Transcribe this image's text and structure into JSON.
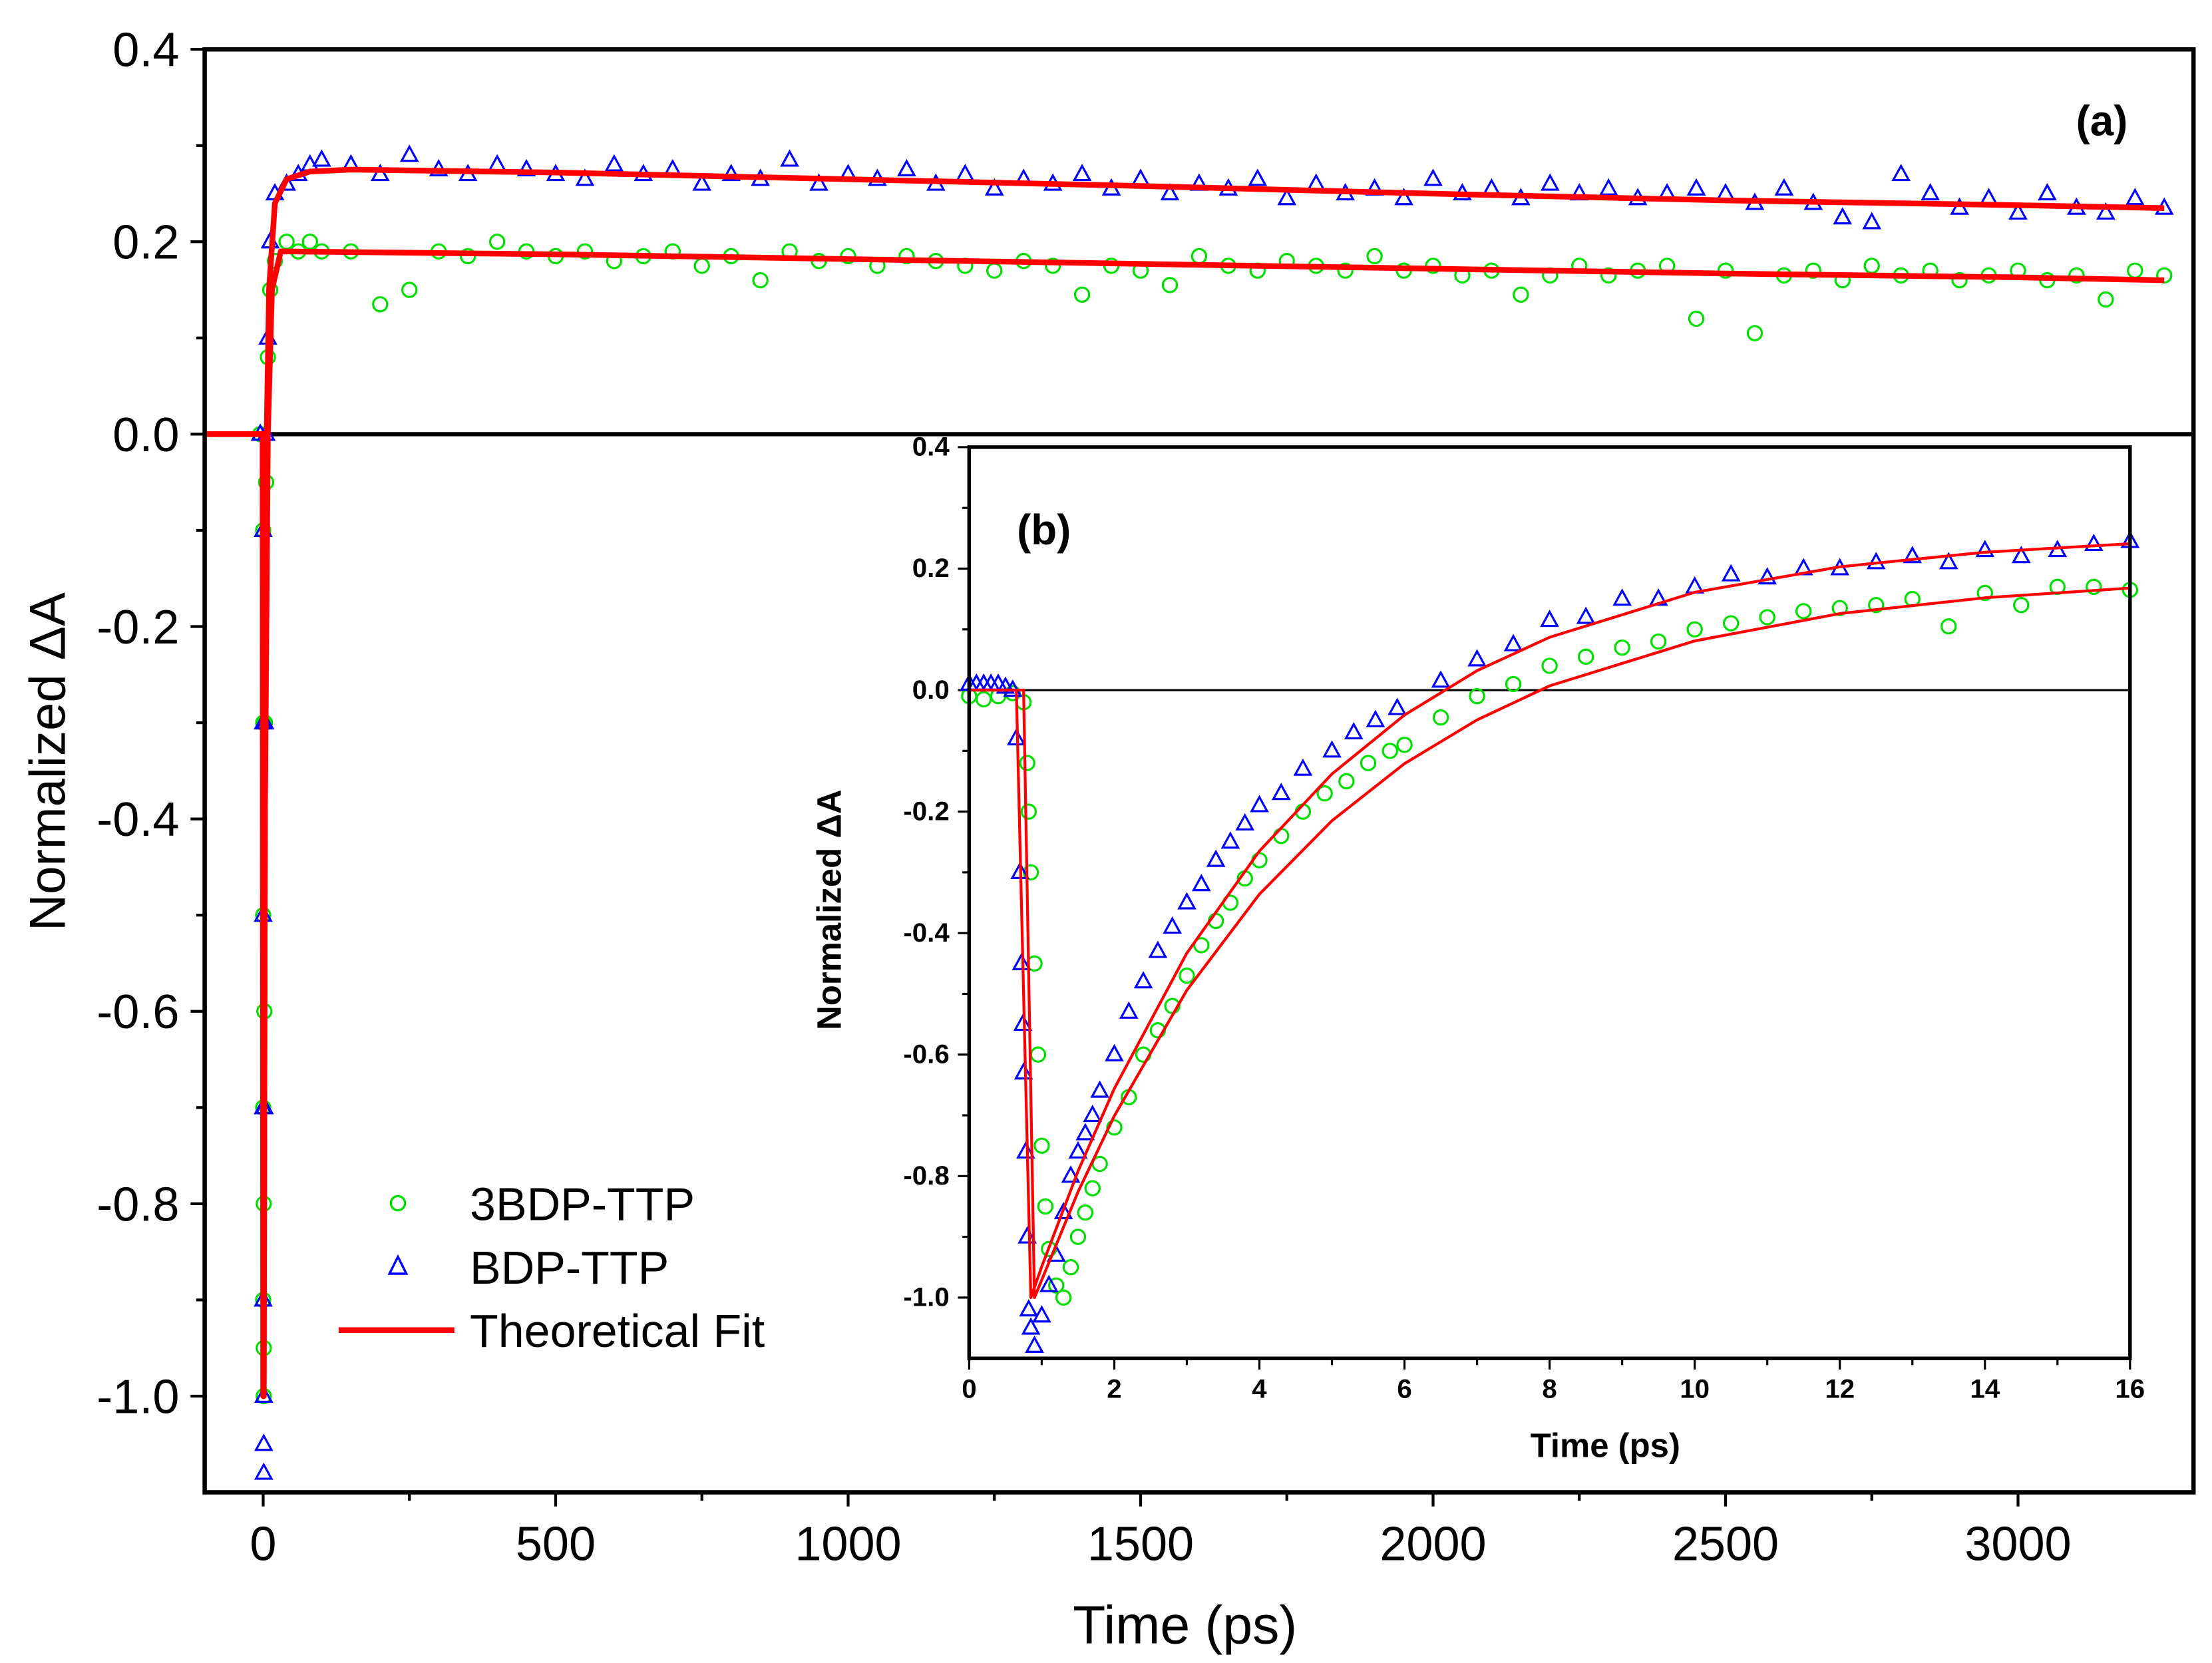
{
  "chart_data": [
    {
      "type": "scatter",
      "panel_label": "(a)",
      "xlabel": "Time (ps)",
      "ylabel": "Normalized ΔA",
      "xlim": [
        -100,
        3300
      ],
      "ylim": [
        -1.1,
        0.4
      ],
      "x_ticks": [
        0,
        500,
        1000,
        1500,
        2000,
        2500,
        3000
      ],
      "x_tick_labels": [
        "0",
        "500",
        "1000",
        "1500",
        "2000",
        "2500",
        "3000"
      ],
      "y_ticks": [
        -1.0,
        -0.8,
        -0.6,
        -0.4,
        -0.2,
        0.0,
        0.2,
        0.4
      ],
      "y_tick_labels": [
        "-1.0",
        "-0.8",
        "-0.6",
        "-0.4",
        "-0.2",
        "0.0",
        "0.2",
        "0.4"
      ],
      "zero_line": true,
      "grid": false,
      "legend": {
        "placement": "bottom-left",
        "entries": [
          "3BDP-TTP",
          "BDP-TTP",
          "Theoretical Fit"
        ]
      },
      "series": [
        {
          "name": "3BDP-TTP",
          "marker": "circle",
          "color": "#00e000",
          "x": [
            -5,
            0,
            0,
            0,
            0,
            0,
            1,
            1,
            1,
            2,
            3,
            5,
            8,
            12,
            20,
            40,
            60,
            80,
            100,
            150,
            200,
            250,
            300,
            350,
            400,
            450,
            500,
            550,
            600,
            650,
            700,
            750,
            800,
            850,
            900,
            950,
            1000,
            1050,
            1100,
            1150,
            1200,
            1250,
            1300,
            1350,
            1400,
            1450,
            1500,
            1550,
            1600,
            1650,
            1700,
            1750,
            1800,
            1850,
            1900,
            1950,
            2000,
            2050,
            2100,
            2150,
            2200,
            2250,
            2300,
            2350,
            2400,
            2450,
            2500,
            2550,
            2600,
            2650,
            2700,
            2750,
            2800,
            2850,
            2900,
            2950,
            3000,
            3050,
            3100,
            3150,
            3200,
            3250
          ],
          "y": [
            0,
            -0.1,
            -0.3,
            -0.5,
            -0.7,
            -0.9,
            -1.0,
            -0.95,
            -0.8,
            -0.6,
            -0.3,
            -0.05,
            0.08,
            0.15,
            0.18,
            0.2,
            0.19,
            0.2,
            0.19,
            0.19,
            0.135,
            0.15,
            0.19,
            0.185,
            0.2,
            0.19,
            0.185,
            0.19,
            0.18,
            0.185,
            0.19,
            0.175,
            0.185,
            0.16,
            0.19,
            0.18,
            0.185,
            0.175,
            0.185,
            0.18,
            0.175,
            0.17,
            0.18,
            0.175,
            0.145,
            0.175,
            0.17,
            0.155,
            0.185,
            0.175,
            0.17,
            0.18,
            0.175,
            0.17,
            0.185,
            0.17,
            0.175,
            0.165,
            0.17,
            0.145,
            0.165,
            0.175,
            0.165,
            0.17,
            0.175,
            0.12,
            0.17,
            0.105,
            0.165,
            0.17,
            0.16,
            0.175,
            0.165,
            0.17,
            0.16,
            0.165,
            0.17,
            0.16,
            0.165,
            0.14,
            0.17,
            0.165
          ]
        },
        {
          "name": "BDP-TTP",
          "marker": "triangle",
          "color": "#0000ff",
          "x": [
            -5,
            0,
            0,
            0,
            0,
            0,
            1,
            1,
            1,
            2,
            3,
            5,
            8,
            12,
            20,
            40,
            60,
            80,
            100,
            150,
            200,
            250,
            300,
            350,
            400,
            450,
            500,
            550,
            600,
            650,
            700,
            750,
            800,
            850,
            900,
            950,
            1000,
            1050,
            1100,
            1150,
            1200,
            1250,
            1300,
            1350,
            1400,
            1450,
            1500,
            1550,
            1600,
            1650,
            1700,
            1750,
            1800,
            1850,
            1900,
            1950,
            2000,
            2050,
            2100,
            2150,
            2200,
            2250,
            2300,
            2350,
            2400,
            2450,
            2500,
            2550,
            2600,
            2650,
            2700,
            2750,
            2800,
            2850,
            2900,
            2950,
            3000,
            3050,
            3100,
            3150,
            3200,
            3250
          ],
          "y": [
            0,
            -0.1,
            -0.3,
            -0.5,
            -0.7,
            -0.9,
            -1.0,
            -1.05,
            -1.08,
            -0.7,
            -0.3,
            0.0,
            0.1,
            0.2,
            0.25,
            0.26,
            0.27,
            0.28,
            0.285,
            0.28,
            0.27,
            0.29,
            0.275,
            0.27,
            0.28,
            0.275,
            0.27,
            0.265,
            0.28,
            0.27,
            0.275,
            0.26,
            0.27,
            0.265,
            0.285,
            0.26,
            0.27,
            0.265,
            0.275,
            0.26,
            0.27,
            0.255,
            0.265,
            0.26,
            0.27,
            0.255,
            0.265,
            0.25,
            0.26,
            0.255,
            0.265,
            0.245,
            0.26,
            0.25,
            0.255,
            0.245,
            0.265,
            0.25,
            0.255,
            0.245,
            0.26,
            0.25,
            0.255,
            0.245,
            0.25,
            0.255,
            0.25,
            0.24,
            0.255,
            0.24,
            0.225,
            0.22,
            0.27,
            0.25,
            0.235,
            0.245,
            0.23,
            0.25,
            0.235,
            0.23,
            0.245,
            0.235
          ]
        },
        {
          "name": "Theoretical Fit",
          "marker": "line",
          "color": "#ff0000",
          "curves": [
            [
              [
                -100,
                0
              ],
              [
                -1,
                0
              ],
              [
                0,
                -1.0
              ],
              [
                1,
                -1.0
              ],
              [
                3,
                -0.4
              ],
              [
                6,
                0.0
              ],
              [
                10,
                0.15
              ],
              [
                20,
                0.24
              ],
              [
                40,
                0.265
              ],
              [
                80,
                0.273
              ],
              [
                150,
                0.275
              ],
              [
                500,
                0.272
              ],
              [
                1000,
                0.265
              ],
              [
                1500,
                0.258
              ],
              [
                2000,
                0.25
              ],
              [
                2500,
                0.243
              ],
              [
                3000,
                0.238
              ],
              [
                3250,
                0.235
              ]
            ],
            [
              [
                -100,
                0
              ],
              [
                0,
                0
              ],
              [
                1,
                -1.0
              ],
              [
                3,
                -0.4
              ],
              [
                8,
                0.0
              ],
              [
                15,
                0.15
              ],
              [
                30,
                0.19
              ],
              [
                500,
                0.187
              ],
              [
                1000,
                0.182
              ],
              [
                1500,
                0.177
              ],
              [
                2000,
                0.172
              ],
              [
                2500,
                0.167
              ],
              [
                3000,
                0.163
              ],
              [
                3250,
                0.16
              ]
            ]
          ]
        }
      ]
    },
    {
      "type": "scatter",
      "panel_label": "(b)",
      "xlabel": "Time (ps)",
      "ylabel": "Normalized ΔA",
      "xlim": [
        0,
        16
      ],
      "ylim": [
        -1.1,
        0.4
      ],
      "x_ticks": [
        0,
        2,
        4,
        6,
        8,
        10,
        12,
        14,
        16
      ],
      "x_tick_labels": [
        "0",
        "2",
        "4",
        "6",
        "8",
        "10",
        "12",
        "14",
        "16"
      ],
      "y_ticks": [
        -1.0,
        -0.8,
        -0.6,
        -0.4,
        -0.2,
        0.0,
        0.2,
        0.4
      ],
      "y_tick_labels": [
        "-1.0",
        "-0.8",
        "-0.6",
        "-0.4",
        "-0.2",
        "0.0",
        "0.2",
        "0.4"
      ],
      "zero_line": true,
      "grid": false,
      "series": [
        {
          "name": "3BDP-TTP",
          "marker": "circle",
          "color": "#00e000",
          "x": [
            0,
            0.2,
            0.4,
            0.6,
            0.75,
            0.8,
            0.82,
            0.85,
            0.9,
            0.95,
            1.0,
            1.05,
            1.1,
            1.2,
            1.3,
            1.4,
            1.5,
            1.6,
            1.7,
            1.8,
            2.0,
            2.2,
            2.4,
            2.6,
            2.8,
            3.0,
            3.2,
            3.4,
            3.6,
            3.8,
            4.0,
            4.3,
            4.6,
            4.9,
            5.2,
            5.5,
            5.8,
            6.0,
            6.5,
            7.0,
            7.5,
            8.0,
            8.5,
            9.0,
            9.5,
            10,
            10.5,
            11,
            11.5,
            12,
            12.5,
            13,
            13.5,
            14,
            14.5,
            15,
            15.5,
            16
          ],
          "y": [
            -0.01,
            -0.015,
            -0.01,
            -0.005,
            -0.02,
            -0.12,
            -0.2,
            -0.3,
            -0.45,
            -0.6,
            -0.75,
            -0.85,
            -0.92,
            -0.98,
            -1.0,
            -0.95,
            -0.9,
            -0.86,
            -0.82,
            -0.78,
            -0.72,
            -0.67,
            -0.6,
            -0.56,
            -0.52,
            -0.47,
            -0.42,
            -0.38,
            -0.35,
            -0.31,
            -0.28,
            -0.24,
            -0.2,
            -0.17,
            -0.15,
            -0.12,
            -0.1,
            -0.09,
            -0.045,
            -0.01,
            0.01,
            0.04,
            0.055,
            0.07,
            0.08,
            0.1,
            0.11,
            0.12,
            0.13,
            0.135,
            0.14,
            0.15,
            0.105,
            0.16,
            0.14,
            0.17,
            0.17,
            0.165
          ]
        },
        {
          "name": "BDP-TTP",
          "marker": "triangle",
          "color": "#0000ff",
          "x": [
            0,
            0.1,
            0.2,
            0.3,
            0.4,
            0.5,
            0.6,
            0.65,
            0.7,
            0.72,
            0.74,
            0.75,
            0.78,
            0.8,
            0.82,
            0.85,
            0.9,
            1.0,
            1.1,
            1.2,
            1.3,
            1.4,
            1.5,
            1.6,
            1.7,
            1.8,
            2.0,
            2.2,
            2.4,
            2.6,
            2.8,
            3.0,
            3.2,
            3.4,
            3.6,
            3.8,
            4.0,
            4.3,
            4.6,
            5.0,
            5.3,
            5.6,
            5.9,
            6.5,
            7.0,
            7.5,
            8.0,
            8.5,
            9.0,
            9.5,
            10,
            10.5,
            11,
            11.5,
            12,
            12.5,
            13,
            13.5,
            14,
            14.5,
            15,
            15.5,
            16
          ],
          "y": [
            0.01,
            0.01,
            0.01,
            0.01,
            0.01,
            0.005,
            0.0,
            -0.08,
            -0.3,
            -0.45,
            -0.55,
            -0.63,
            -0.76,
            -0.9,
            -1.02,
            -1.05,
            -1.08,
            -1.03,
            -0.98,
            -0.93,
            -0.86,
            -0.8,
            -0.76,
            -0.73,
            -0.7,
            -0.66,
            -0.6,
            -0.53,
            -0.48,
            -0.43,
            -0.39,
            -0.35,
            -0.32,
            -0.28,
            -0.25,
            -0.22,
            -0.19,
            -0.17,
            -0.13,
            -0.1,
            -0.07,
            -0.05,
            -0.03,
            0.015,
            0.05,
            0.075,
            0.115,
            0.12,
            0.15,
            0.15,
            0.17,
            0.19,
            0.185,
            0.2,
            0.2,
            0.21,
            0.22,
            0.21,
            0.23,
            0.22,
            0.23,
            0.24,
            0.245
          ]
        },
        {
          "name": "Theoretical Fit",
          "marker": "line",
          "color": "#ff0000",
          "curves": [
            [
              [
                0,
                0
              ],
              [
                0.65,
                0
              ],
              [
                0.85,
                -1.0
              ],
              [
                1,
                -0.949
              ],
              [
                1.5,
                -0.792
              ],
              [
                2,
                -0.656
              ],
              [
                3,
                -0.433
              ],
              [
                4,
                -0.265
              ],
              [
                5,
                -0.138
              ],
              [
                6,
                -0.041
              ],
              [
                7,
                0.032
              ],
              [
                8,
                0.087
              ],
              [
                10,
                0.161
              ],
              [
                12,
                0.203
              ],
              [
                14,
                0.227
              ],
              [
                16,
                0.241
              ]
            ],
            [
              [
                0,
                0
              ],
              [
                0.75,
                0
              ],
              [
                0.9,
                -1.0
              ],
              [
                1.5,
                -0.826
              ],
              [
                2,
                -0.701
              ],
              [
                3,
                -0.494
              ],
              [
                4,
                -0.336
              ],
              [
                5,
                -0.215
              ],
              [
                6,
                -0.121
              ],
              [
                7,
                -0.049
              ],
              [
                8,
                0.007
              ],
              [
                10,
                0.081
              ],
              [
                12,
                0.126
              ],
              [
                14,
                0.152
              ],
              [
                16,
                0.168
              ]
            ]
          ]
        }
      ]
    }
  ]
}
